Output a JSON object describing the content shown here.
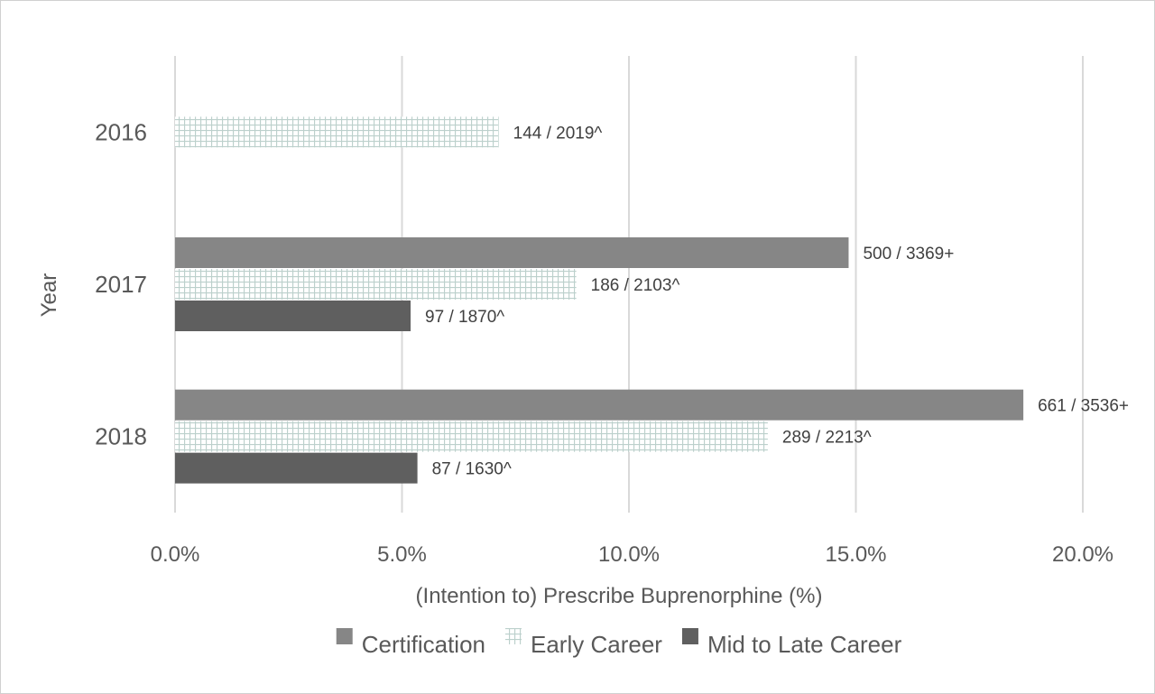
{
  "chart_data": {
    "type": "bar",
    "orientation": "horizontal",
    "title": "",
    "xlabel": "(Intention to) Prescribe Buprenorphine (%)",
    "ylabel": "Year",
    "xlim": [
      0,
      20
    ],
    "x_ticks": [
      "0.0%",
      "5.0%",
      "10.0%",
      "15.0%",
      "20.0%"
    ],
    "categories": [
      "2016",
      "2017",
      "2018"
    ],
    "grid": "vertical",
    "legend_position": "bottom",
    "series": [
      {
        "name": "Certification",
        "color": "#868686",
        "pattern": "solid",
        "values": [
          null,
          14.84,
          18.69
        ],
        "labels": [
          "",
          "500 / 3369+",
          "661 / 3536+"
        ]
      },
      {
        "name": "Early Career",
        "color": "#bcd0cc",
        "pattern": "grid",
        "values": [
          7.13,
          8.84,
          13.06
        ],
        "labels": [
          "144 / 2019^",
          "186 / 2103^",
          "289 / 2213^"
        ]
      },
      {
        "name": "Mid to Late Career",
        "color": "#5f5f5f",
        "pattern": "solid",
        "values": [
          null,
          5.19,
          5.34
        ],
        "labels": [
          "",
          "97 / 1870^",
          "87 / 1630^"
        ]
      }
    ]
  }
}
